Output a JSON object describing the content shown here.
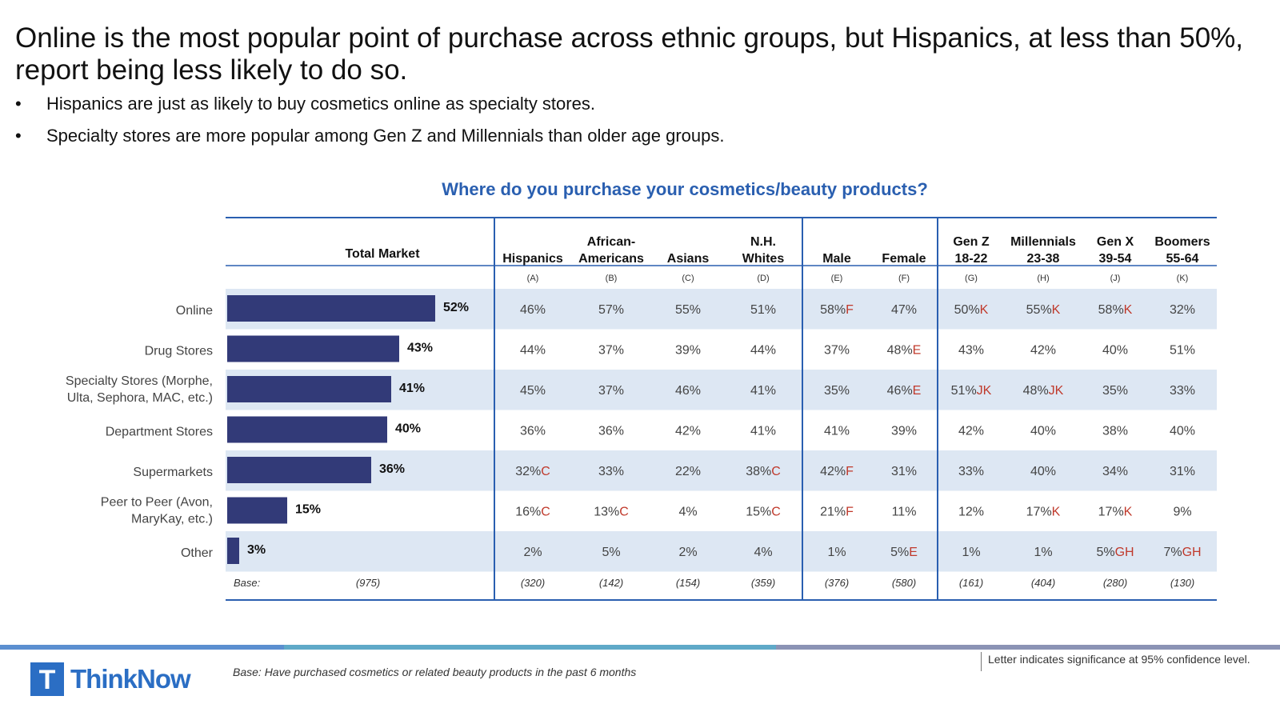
{
  "title": "Online is the most popular point of purchase across ethnic groups, but Hispanics, at less than 50%, report being less likely to do so.",
  "bullets": [
    "Hispanics are just as likely to buy cosmetics online as specialty stores.",
    "Specialty stores are more popular among Gen Z and Millennials than older age groups."
  ],
  "bullet_symbol": "•",
  "chart_data": {
    "type": "bar",
    "title": "Where do you purchase your cosmetics/beauty products?",
    "total_header": "Total Market",
    "categories": [
      [
        "Online"
      ],
      [
        "Drug Stores"
      ],
      [
        "Specialty Stores (Morphe,",
        "Ulta, Sephora, MAC, etc.)"
      ],
      [
        "Department Stores"
      ],
      [
        "Supermarkets"
      ],
      [
        "Peer to Peer (Avon,",
        "MaryKay, etc.)"
      ],
      [
        "Other"
      ]
    ],
    "values": [
      52,
      43,
      41,
      40,
      36,
      15,
      3
    ],
    "value_labels": [
      "52%",
      "43%",
      "41%",
      "40%",
      "36%",
      "15%",
      "3%"
    ],
    "xlim": [
      0,
      57
    ],
    "columns": [
      {
        "header": [
          "",
          "Hispanics"
        ],
        "letter": "(A)",
        "base": "(320)"
      },
      {
        "header": [
          "African-",
          "Americans"
        ],
        "letter": "(B)",
        "base": "(142)"
      },
      {
        "header": [
          "",
          "Asians"
        ],
        "letter": "(C)",
        "base": "(154)"
      },
      {
        "header": [
          "N.H.",
          "Whites"
        ],
        "letter": "(D)",
        "base": "(359)"
      },
      {
        "header": [
          "",
          "Male"
        ],
        "letter": "(E)",
        "base": "(376)"
      },
      {
        "header": [
          "",
          "Female"
        ],
        "letter": "(F)",
        "base": "(580)"
      },
      {
        "header": [
          "Gen Z",
          "18-22"
        ],
        "letter": "(G)",
        "base": "(161)"
      },
      {
        "header": [
          "Millennials",
          "23-38"
        ],
        "letter": "(H)",
        "base": "(404)"
      },
      {
        "header": [
          "Gen X",
          "39-54"
        ],
        "letter": "(J)",
        "base": "(280)"
      },
      {
        "header": [
          "Boomers",
          "55-64"
        ],
        "letter": "(K)",
        "base": "(130)"
      }
    ],
    "cells": [
      [
        [
          "46%",
          ""
        ],
        [
          "57%",
          ""
        ],
        [
          "55%",
          ""
        ],
        [
          "51%",
          ""
        ],
        [
          "58%",
          "F"
        ],
        [
          "47%",
          ""
        ],
        [
          "50%",
          "K"
        ],
        [
          "55%",
          "K"
        ],
        [
          "58%",
          "K"
        ],
        [
          "32%",
          ""
        ]
      ],
      [
        [
          "44%",
          ""
        ],
        [
          "37%",
          ""
        ],
        [
          "39%",
          ""
        ],
        [
          "44%",
          ""
        ],
        [
          "37%",
          ""
        ],
        [
          "48%",
          "E"
        ],
        [
          "43%",
          ""
        ],
        [
          "42%",
          ""
        ],
        [
          "40%",
          ""
        ],
        [
          "51%",
          ""
        ]
      ],
      [
        [
          "45%",
          ""
        ],
        [
          "37%",
          ""
        ],
        [
          "46%",
          ""
        ],
        [
          "41%",
          ""
        ],
        [
          "35%",
          ""
        ],
        [
          "46%",
          "E"
        ],
        [
          "51%",
          "JK"
        ],
        [
          "48%",
          "JK"
        ],
        [
          "35%",
          ""
        ],
        [
          "33%",
          ""
        ]
      ],
      [
        [
          "36%",
          ""
        ],
        [
          "36%",
          ""
        ],
        [
          "42%",
          ""
        ],
        [
          "41%",
          ""
        ],
        [
          "41%",
          ""
        ],
        [
          "39%",
          ""
        ],
        [
          "42%",
          ""
        ],
        [
          "40%",
          ""
        ],
        [
          "38%",
          ""
        ],
        [
          "40%",
          ""
        ]
      ],
      [
        [
          "32%",
          "C"
        ],
        [
          "33%",
          ""
        ],
        [
          "22%",
          ""
        ],
        [
          "38%",
          "C"
        ],
        [
          "42%",
          "F"
        ],
        [
          "31%",
          ""
        ],
        [
          "33%",
          ""
        ],
        [
          "40%",
          ""
        ],
        [
          "34%",
          ""
        ],
        [
          "31%",
          ""
        ]
      ],
      [
        [
          "16%",
          "C"
        ],
        [
          "13%",
          "C"
        ],
        [
          "4%",
          ""
        ],
        [
          "15%",
          "C"
        ],
        [
          "21%",
          "F"
        ],
        [
          "11%",
          ""
        ],
        [
          "12%",
          ""
        ],
        [
          "17%",
          "K"
        ],
        [
          "17%",
          "K"
        ],
        [
          "9%",
          ""
        ]
      ],
      [
        [
          "2%",
          ""
        ],
        [
          "5%",
          ""
        ],
        [
          "2%",
          ""
        ],
        [
          "4%",
          ""
        ],
        [
          "1%",
          ""
        ],
        [
          "5%",
          "E"
        ],
        [
          "1%",
          ""
        ],
        [
          "1%",
          ""
        ],
        [
          "5%",
          "GH"
        ],
        [
          "7%",
          "GH"
        ]
      ]
    ],
    "base_label": "Base:",
    "total_base": "(975)"
  },
  "footer": {
    "base_note": "Base: Have purchased cosmetics or related beauty products in the past 6 months",
    "sig_note": "Letter indicates significance at 95% confidence level.",
    "logo_text": "ThinkNow",
    "logo_letter": "T"
  },
  "colors": {
    "bar": "#323a78",
    "band": "#dde7f3",
    "rule": "#2a5fb0",
    "sig": "#c0392b",
    "title_blue": "#2a5fb0",
    "logo_blue": "#2b6ec4"
  }
}
